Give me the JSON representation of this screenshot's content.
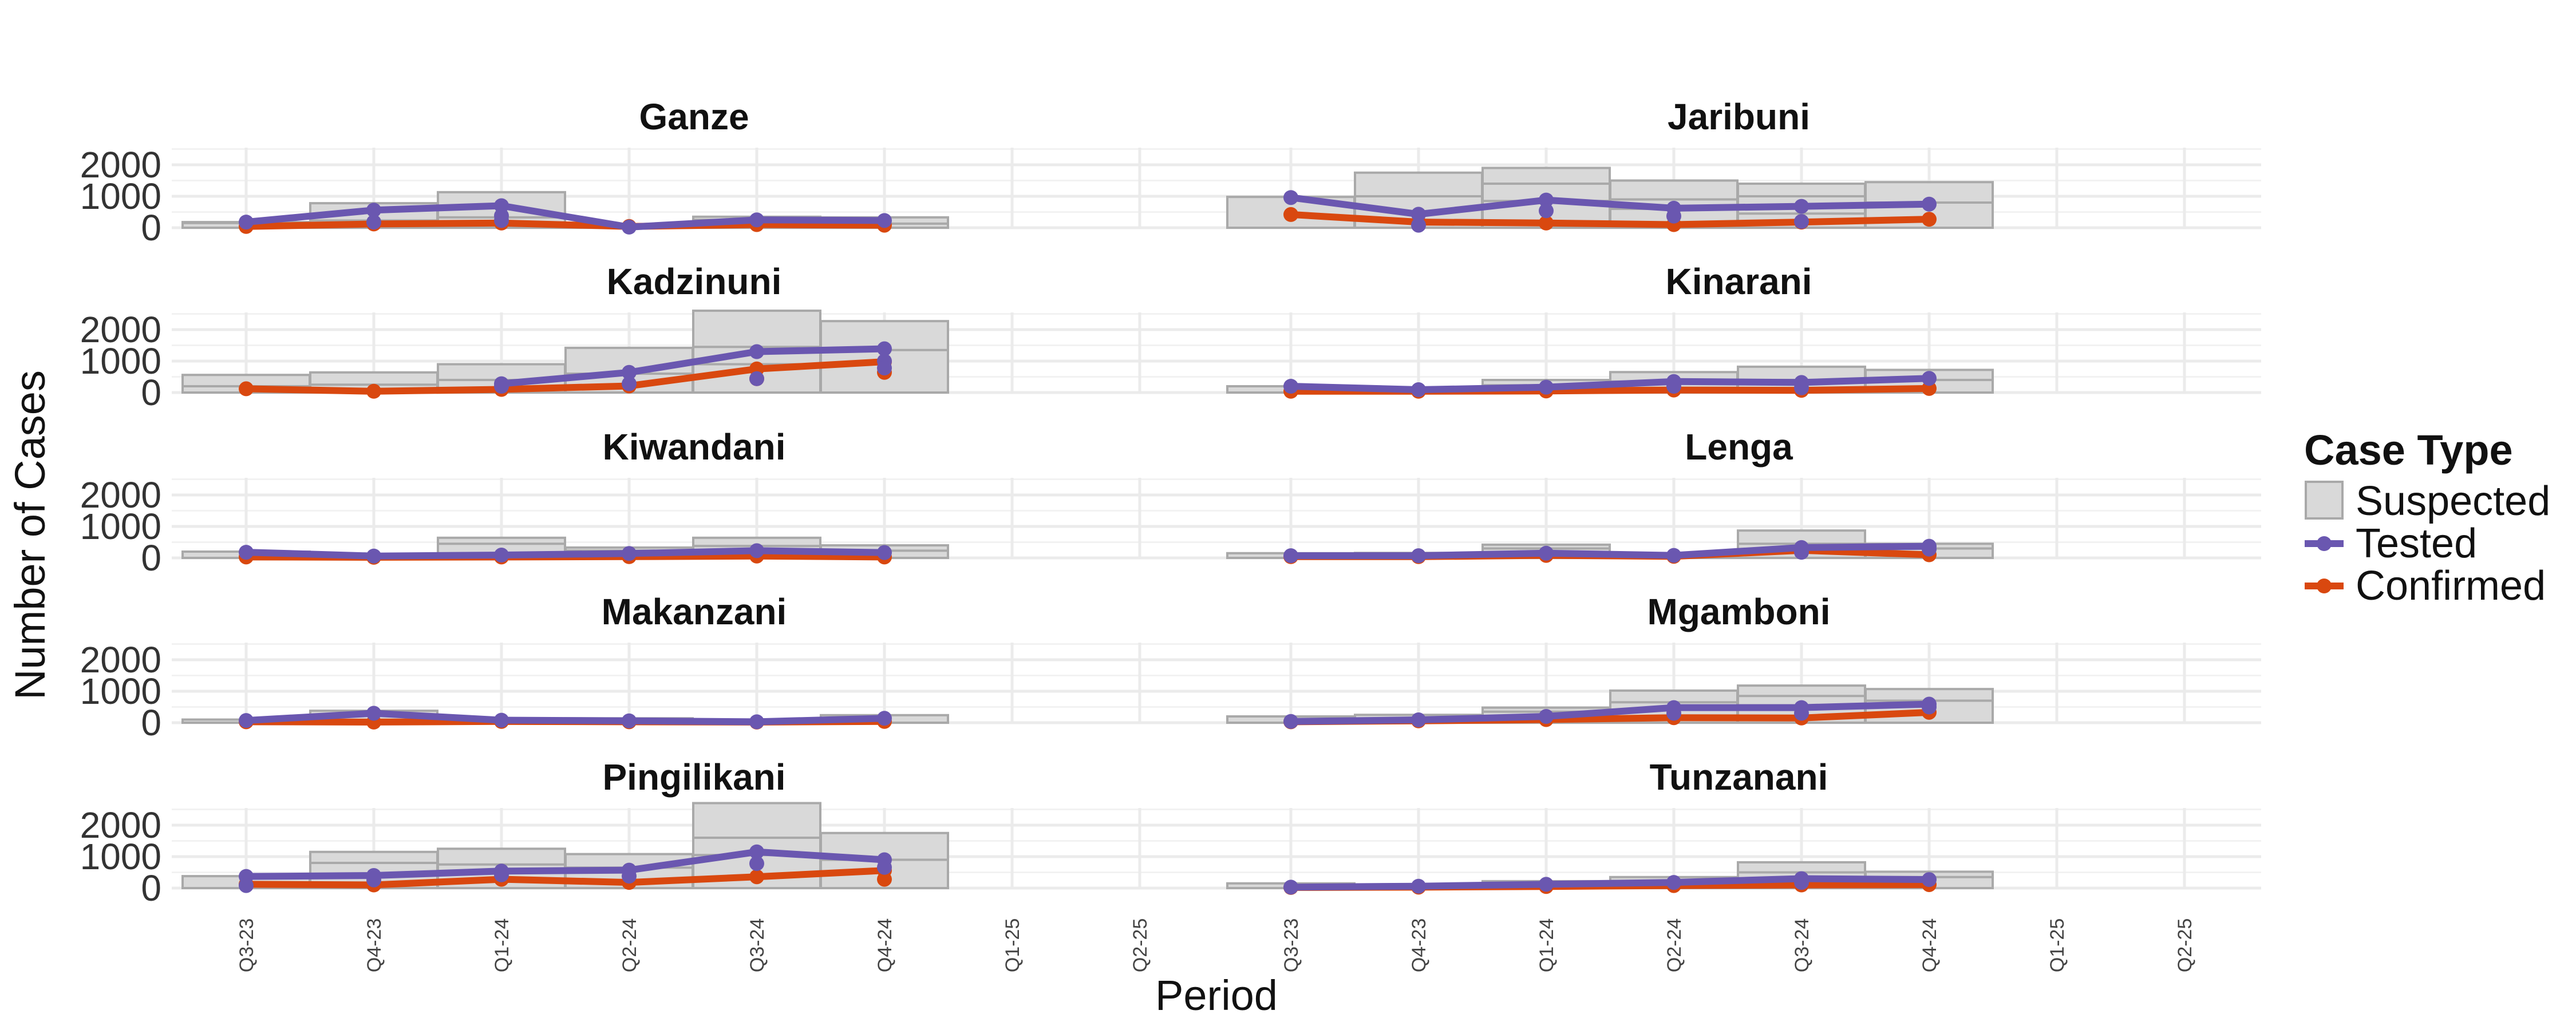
{
  "chart_data": {
    "type": "faceted-bar-line",
    "xlabel": "Period",
    "ylabel": "Number of Cases",
    "x_ticks": [
      "Q3-23",
      "Q4-23",
      "Q1-24",
      "Q2-24",
      "Q3-24",
      "Q4-24",
      "Q1-25",
      "Q2-25"
    ],
    "y_ticks": [
      0,
      1000,
      2000
    ],
    "ylim": [
      0,
      2000
    ],
    "legend": {
      "title": "Case Type",
      "position": "right",
      "entries": [
        {
          "name": "Suspected",
          "type": "bar",
          "color": "#d9d9d9"
        },
        {
          "name": "Tested",
          "type": "line",
          "color": "#6a57b0"
        },
        {
          "name": "Confirmed",
          "type": "line",
          "color": "#d9480f"
        }
      ]
    },
    "colors": {
      "suspected_fill": "#d9d9d9",
      "suspected_edge": "#a9a9a9",
      "tested": "#6a57b0",
      "confirmed": "#d9480f",
      "grid": "#ebebeb"
    },
    "panels": [
      {
        "name": "Ganze",
        "suspected": [
          [
            180,
            150
          ],
          [
            780,
            230
          ],
          [
            1130,
            330
          ],
          [
            70,
            40
          ],
          [
            350,
            250
          ],
          [
            330,
            130
          ]
        ],
        "tested": [
          [
            180,
            null
          ],
          [
            560,
            180
          ],
          [
            700,
            380,
            230
          ],
          [
            20,
            null
          ],
          [
            250,
            null
          ],
          [
            230,
            null
          ]
        ],
        "confirmed": [
          [
            40,
            null
          ],
          [
            120,
            null
          ],
          [
            150,
            null
          ],
          [
            40,
            null
          ],
          [
            100,
            null
          ],
          [
            80,
            null
          ]
        ]
      },
      {
        "name": "Jaribuni",
        "suspected": [
          [
            980,
            null
          ],
          [
            1750,
            1000
          ],
          [
            1900,
            1400,
            850
          ],
          [
            1500,
            900,
            600
          ],
          [
            1400,
            1000,
            450
          ],
          [
            1450,
            800
          ]
        ],
        "tested": [
          [
            960,
            null
          ],
          [
            430,
            80
          ],
          [
            880,
            540
          ],
          [
            620,
            370
          ],
          [
            680,
            200
          ],
          [
            750,
            null
          ]
        ],
        "confirmed": [
          [
            420,
            null
          ],
          [
            180,
            null
          ],
          [
            150,
            null
          ],
          [
            100,
            null
          ],
          [
            180,
            null
          ],
          [
            270,
            null
          ]
        ]
      },
      {
        "name": "Kadzinuni",
        "suspected": [
          [
            560,
            200
          ],
          [
            640,
            250
          ],
          [
            900,
            400
          ],
          [
            1420,
            600
          ],
          [
            2600,
            1450,
            900
          ],
          [
            2270,
            1350
          ]
        ],
        "tested": [
          [
            null,
            null
          ],
          [
            null,
            null
          ],
          [
            280,
            200
          ],
          [
            640,
            280
          ],
          [
            1300,
            440
          ],
          [
            1390,
            1000,
            780
          ]
        ],
        "confirmed": [
          [
            120,
            null
          ],
          [
            40,
            null
          ],
          [
            100,
            null
          ],
          [
            210,
            null
          ],
          [
            750,
            440
          ],
          [
            980,
            640
          ]
        ]
      },
      {
        "name": "Kinarani",
        "suspected": [
          [
            200,
            null
          ],
          [
            140,
            null
          ],
          [
            400,
            230
          ],
          [
            650,
            350
          ],
          [
            820,
            400
          ],
          [
            720,
            400
          ]
        ],
        "tested": [
          [
            200,
            null
          ],
          [
            90,
            null
          ],
          [
            170,
            null
          ],
          [
            350,
            200
          ],
          [
            320,
            150
          ],
          [
            450,
            null
          ]
        ],
        "confirmed": [
          [
            40,
            null
          ],
          [
            40,
            null
          ],
          [
            50,
            null
          ],
          [
            80,
            null
          ],
          [
            70,
            null
          ],
          [
            130,
            null
          ]
        ]
      },
      {
        "name": "Kiwandani",
        "suspected": [
          [
            200,
            null
          ],
          [
            90,
            null
          ],
          [
            640,
            450
          ],
          [
            330,
            230
          ],
          [
            640,
            380
          ],
          [
            400,
            230
          ]
        ],
        "tested": [
          [
            180,
            null
          ],
          [
            60,
            null
          ],
          [
            90,
            null
          ],
          [
            140,
            null
          ],
          [
            230,
            null
          ],
          [
            170,
            null
          ]
        ],
        "confirmed": [
          [
            30,
            null
          ],
          [
            20,
            null
          ],
          [
            30,
            null
          ],
          [
            40,
            null
          ],
          [
            60,
            null
          ],
          [
            30,
            null
          ]
        ]
      },
      {
        "name": "Lenga",
        "suspected": [
          [
            150,
            null
          ],
          [
            160,
            null
          ],
          [
            420,
            300
          ],
          [
            60,
            null
          ],
          [
            870,
            450
          ],
          [
            450,
            300
          ]
        ],
        "tested": [
          [
            70,
            null
          ],
          [
            70,
            null
          ],
          [
            150,
            null
          ],
          [
            80,
            null
          ],
          [
            330,
            180
          ],
          [
            370,
            280
          ]
        ],
        "confirmed": [
          [
            40,
            null
          ],
          [
            40,
            null
          ],
          [
            80,
            null
          ],
          [
            50,
            null
          ],
          [
            240,
            null
          ],
          [
            100,
            null
          ]
        ]
      },
      {
        "name": "Makanzani",
        "suspected": [
          [
            100,
            null
          ],
          [
            380,
            250
          ],
          [
            120,
            null
          ],
          [
            140,
            null
          ],
          [
            90,
            null
          ],
          [
            240,
            null
          ]
        ],
        "tested": [
          [
            70,
            null
          ],
          [
            300,
            null
          ],
          [
            80,
            null
          ],
          [
            60,
            null
          ],
          [
            30,
            null
          ],
          [
            140,
            null
          ]
        ],
        "confirmed": [
          [
            30,
            null
          ],
          [
            20,
            null
          ],
          [
            40,
            null
          ],
          [
            30,
            null
          ],
          [
            20,
            null
          ],
          [
            40,
            null
          ]
        ]
      },
      {
        "name": "Mgamboni",
        "suspected": [
          [
            200,
            null
          ],
          [
            250,
            null
          ],
          [
            480,
            350
          ],
          [
            1020,
            650
          ],
          [
            1180,
            850,
            550
          ],
          [
            1070,
            700
          ]
        ],
        "tested": [
          [
            40,
            null
          ],
          [
            90,
            null
          ],
          [
            200,
            null
          ],
          [
            480,
            300
          ],
          [
            480,
            300
          ],
          [
            590,
            500
          ]
        ],
        "confirmed": [
          [
            30,
            null
          ],
          [
            60,
            null
          ],
          [
            100,
            null
          ],
          [
            160,
            null
          ],
          [
            150,
            null
          ],
          [
            330,
            null
          ]
        ]
      },
      {
        "name": "Pingilikani",
        "suspected": [
          [
            380,
            null
          ],
          [
            1150,
            800
          ],
          [
            1250,
            750
          ],
          [
            1080,
            650
          ],
          [
            2700,
            1600,
            1050
          ],
          [
            1750,
            900
          ]
        ],
        "tested": [
          [
            370,
            80
          ],
          [
            400,
            260
          ],
          [
            540,
            420
          ],
          [
            570,
            380
          ],
          [
            1150,
            780
          ],
          [
            900,
            660
          ]
        ],
        "confirmed": [
          [
            120,
            null
          ],
          [
            100,
            null
          ],
          [
            280,
            null
          ],
          [
            180,
            null
          ],
          [
            360,
            null
          ],
          [
            560,
            280
          ]
        ]
      },
      {
        "name": "Tunzanani",
        "suspected": [
          [
            150,
            null
          ],
          [
            80,
            null
          ],
          [
            220,
            null
          ],
          [
            350,
            230
          ],
          [
            820,
            500
          ],
          [
            520,
            350
          ]
        ],
        "tested": [
          [
            30,
            null
          ],
          [
            60,
            null
          ],
          [
            120,
            null
          ],
          [
            180,
            null
          ],
          [
            300,
            180
          ],
          [
            270,
            null
          ]
        ],
        "confirmed": [
          [
            20,
            null
          ],
          [
            30,
            null
          ],
          [
            50,
            null
          ],
          [
            80,
            null
          ],
          [
            100,
            null
          ],
          [
            110,
            null
          ]
        ]
      }
    ]
  }
}
